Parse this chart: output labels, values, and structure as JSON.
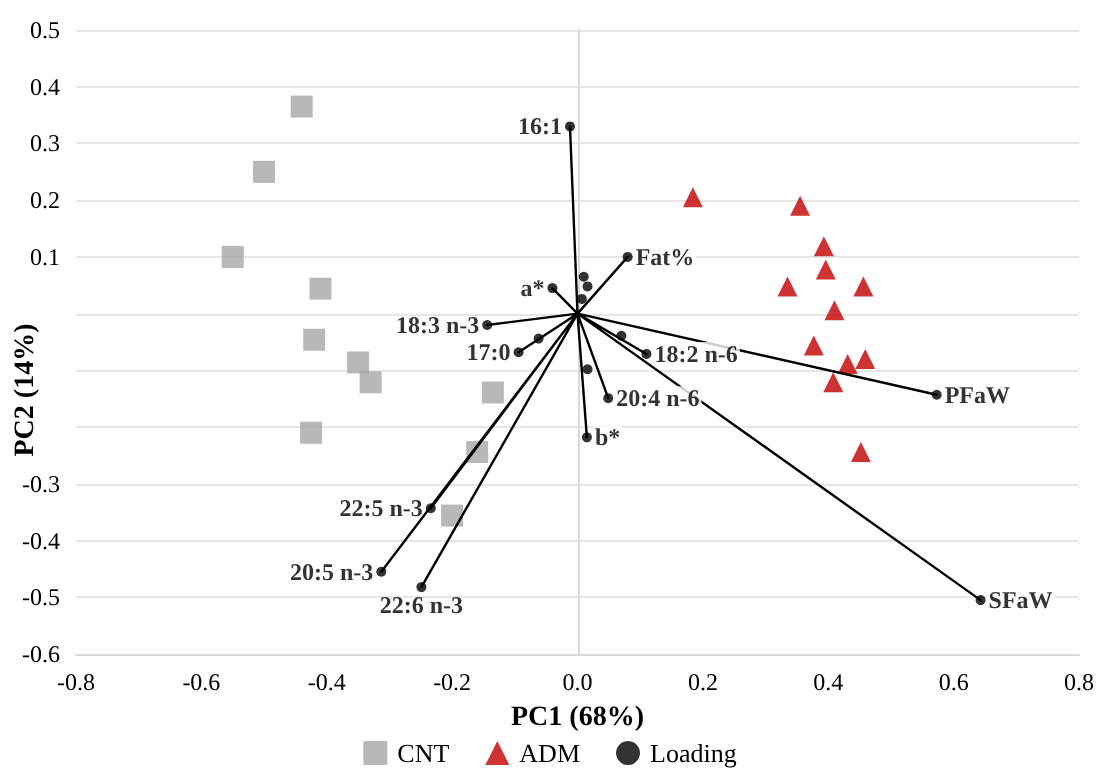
{
  "chart_data": {
    "type": "scatter",
    "xlabel": "PC1 (68%)",
    "ylabel": "PC2 (14%)",
    "xlim": [
      -0.8,
      0.8
    ],
    "xticks": [
      -0.8,
      -0.6,
      -0.4,
      -0.2,
      {
        "value": 0,
        "label": "0.0"
      },
      0.2,
      0.4,
      0.6,
      0.8
    ],
    "ylim": [
      -0.6,
      0.5
    ],
    "yticks": [
      -0.6,
      -0.5,
      -0.4,
      -0.3,
      {
        "value": -0.2,
        "label": null
      },
      {
        "value": -0.1,
        "label": null
      },
      {
        "value": 0,
        "label": null
      },
      0.1,
      0.2,
      0.3,
      0.4,
      0.5
    ],
    "grid": "y",
    "legend": "bottom",
    "series": [
      {
        "name": "CNT",
        "color": "#a6a6a6",
        "marker": "square",
        "x": [
          -0.44,
          -0.5,
          -0.55,
          -0.41,
          -0.42,
          -0.35,
          -0.33,
          -0.135,
          -0.425,
          -0.16,
          -0.2
        ],
        "values": [
          0.365,
          0.25,
          0.1,
          0.044,
          -0.046,
          -0.086,
          -0.121,
          -0.139,
          -0.21,
          -0.244,
          -0.356
        ]
      },
      {
        "name": "ADM",
        "color": "#c00000",
        "marker": "triangle",
        "x": [
          0.184,
          0.355,
          0.393,
          0.396,
          0.335,
          0.456,
          0.41,
          0.377,
          0.431,
          0.459,
          0.408,
          0.452
        ],
        "values": [
          0.205,
          0.19,
          0.119,
          0.078,
          0.048,
          0.048,
          0.006,
          -0.056,
          -0.089,
          -0.08,
          -0.121,
          -0.244
        ]
      },
      {
        "name": "Loading",
        "color": "#000000",
        "marker": "circle",
        "x": [
          -0.012,
          0.08,
          -0.04,
          -0.144,
          -0.094,
          -0.062,
          0.01,
          0.016,
          0.007,
          0.07,
          0.11,
          0.016,
          0.049,
          0.015,
          0.573,
          0.643,
          -0.234,
          -0.313,
          -0.249
        ],
        "values": [
          0.33,
          0.1,
          0.045,
          -0.02,
          -0.068,
          -0.044,
          0.065,
          0.048,
          0.026,
          -0.039,
          -0.071,
          -0.098,
          -0.149,
          -0.218,
          -0.143,
          -0.505,
          -0.343,
          -0.455,
          -0.482
        ]
      },
      {
        "type": "line",
        "color": "#000000",
        "marker": "none",
        "x": [
          0,
          -0.012,
          null,
          0,
          0.08,
          null,
          0,
          -0.04,
          null,
          0,
          -0.144,
          null,
          0,
          -0.094,
          null,
          0,
          0.11,
          null,
          0,
          0.049,
          null,
          0,
          0.015,
          null,
          0,
          0.573,
          null,
          0,
          0.643,
          null,
          0,
          -0.234,
          null,
          0,
          -0.313,
          null,
          0,
          -0.249
        ],
        "values": [
          0,
          0.33,
          null,
          0,
          0.1,
          null,
          0,
          0.045,
          null,
          0,
          -0.02,
          null,
          0,
          -0.068,
          null,
          0,
          -0.071,
          null,
          0,
          -0.149,
          null,
          0,
          -0.218,
          null,
          0,
          -0.143,
          null,
          0,
          -0.505,
          null,
          0,
          -0.343,
          null,
          0,
          -0.455,
          null,
          0,
          -0.482
        ]
      }
    ],
    "annotations": [
      {
        "text": "16:1",
        "x": -0.012,
        "y": 0.33
      },
      {
        "text": "Fat%",
        "x": 0.08,
        "y": 0.1
      },
      {
        "text": "a*",
        "x": -0.04,
        "y": 0.045
      },
      {
        "text": "18:3 n-3",
        "x": -0.144,
        "y": -0.02
      },
      {
        "text": "17:0",
        "x": -0.094,
        "y": -0.068
      },
      {
        "text": "18:2 n-6",
        "x": 0.11,
        "y": -0.071
      },
      {
        "text": "20:4 n-6",
        "x": 0.049,
        "y": -0.149
      },
      {
        "text": "b*",
        "x": 0.015,
        "y": -0.218
      },
      {
        "text": "PFaW",
        "x": 0.573,
        "y": -0.143
      },
      {
        "text": "SFaW",
        "x": 0.643,
        "y": -0.505
      },
      {
        "text": "22:5 n-3",
        "x": -0.234,
        "y": -0.343
      },
      {
        "text": "20:5 n-3",
        "x": -0.313,
        "y": -0.455
      },
      {
        "text": "22:6 n-3",
        "x": -0.249,
        "y": -0.482
      }
    ]
  }
}
